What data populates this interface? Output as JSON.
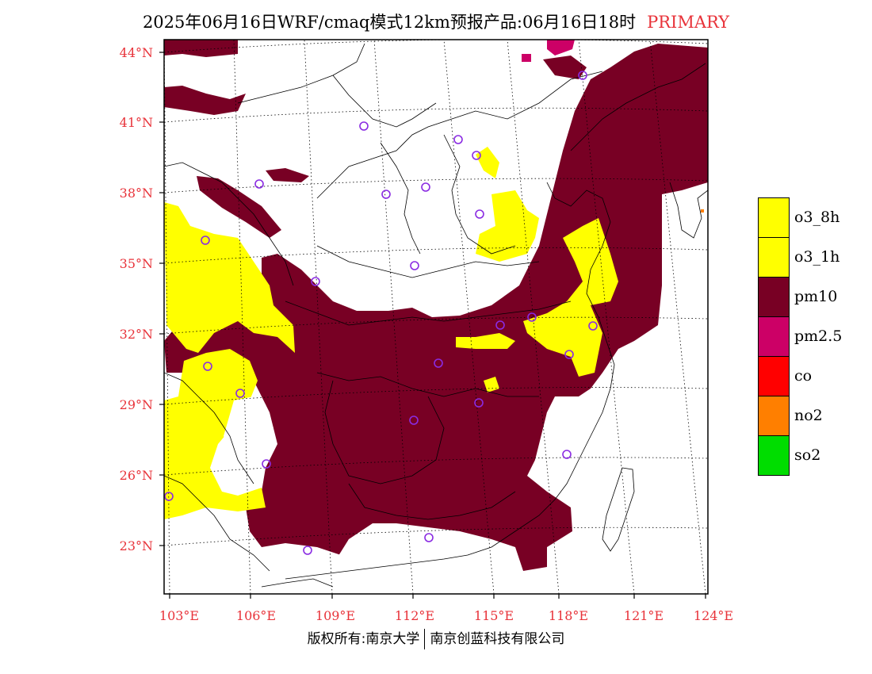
{
  "title": {
    "main": "2025年06月16日WRF/cmaq模式12km预报产品:06月16日18时",
    "tag": "PRIMARY"
  },
  "colors": {
    "o3_8h": "#ffff00",
    "o3_1h": "#ffff00",
    "pm10": "#780024",
    "pm2_5": "#cc0066",
    "co": "#ff0000",
    "no2": "#ff7f00",
    "so2": "#00dd00",
    "axis_label": "#e8333a",
    "station_marker": "#8a2be2"
  },
  "axes": {
    "latitudes": [
      "44°N",
      "41°N",
      "38°N",
      "35°N",
      "32°N",
      "29°N",
      "26°N",
      "23°N"
    ],
    "longitudes": [
      "103°E",
      "106°E",
      "109°E",
      "112°E",
      "115°E",
      "118°E",
      "121°E",
      "124°E"
    ]
  },
  "legend": [
    {
      "key": "o3_8h",
      "label": "o3_8h"
    },
    {
      "key": "o3_1h",
      "label": "o3_1h"
    },
    {
      "key": "pm10",
      "label": "pm10"
    },
    {
      "key": "pm2_5",
      "label": "pm2.5"
    },
    {
      "key": "co",
      "label": "co"
    },
    {
      "key": "no2",
      "label": "no2"
    },
    {
      "key": "so2",
      "label": "so2"
    }
  ],
  "footer": {
    "left": "版权所有:南京大学",
    "right": "南京创蓝科技有限公司"
  }
}
